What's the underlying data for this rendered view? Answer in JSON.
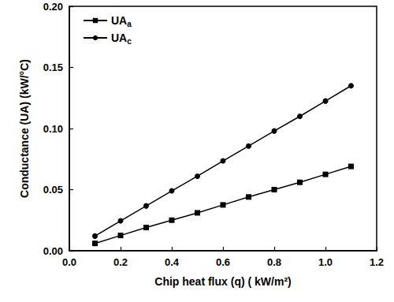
{
  "chart_data": {
    "type": "line",
    "x_label": "Chip heat flux (q) ( kW/m²)",
    "y_label": "Conductance (UA) (kW/°C)",
    "x": [
      0.1,
      0.2,
      0.3,
      0.4,
      0.5,
      0.6,
      0.7,
      0.8,
      0.9,
      1.0,
      1.1
    ],
    "series": [
      {
        "name": "UAa",
        "color": "#000000",
        "marker": "square",
        "line_style": "solid",
        "values": [
          0.006,
          0.0125,
          0.019,
          0.025,
          0.031,
          0.0375,
          0.044,
          0.05,
          0.056,
          0.0625,
          0.069
        ]
      },
      {
        "name": "UAc",
        "color": "#000000",
        "marker": "circle",
        "line_style": "solid",
        "values": [
          0.012,
          0.0245,
          0.0367,
          0.049,
          0.061,
          0.0735,
          0.0857,
          0.098,
          0.11,
          0.1225,
          0.135
        ]
      }
    ],
    "xlim": [
      0,
      1.2
    ],
    "xticks": [
      {
        "value": 0,
        "label": "0.0"
      },
      0.2,
      0.4,
      0.6,
      0.8,
      {
        "value": 1.0,
        "label": "1.0"
      },
      1.2
    ],
    "ylim": [
      0,
      0.2
    ],
    "yticks": [
      {
        "value": 0,
        "label": "0.00"
      },
      0.05,
      {
        "value": 0.1,
        "label": "0.10"
      },
      0.15,
      {
        "value": 0.2,
        "label": "0.20"
      }
    ],
    "grid": false,
    "legend": "upper left"
  }
}
